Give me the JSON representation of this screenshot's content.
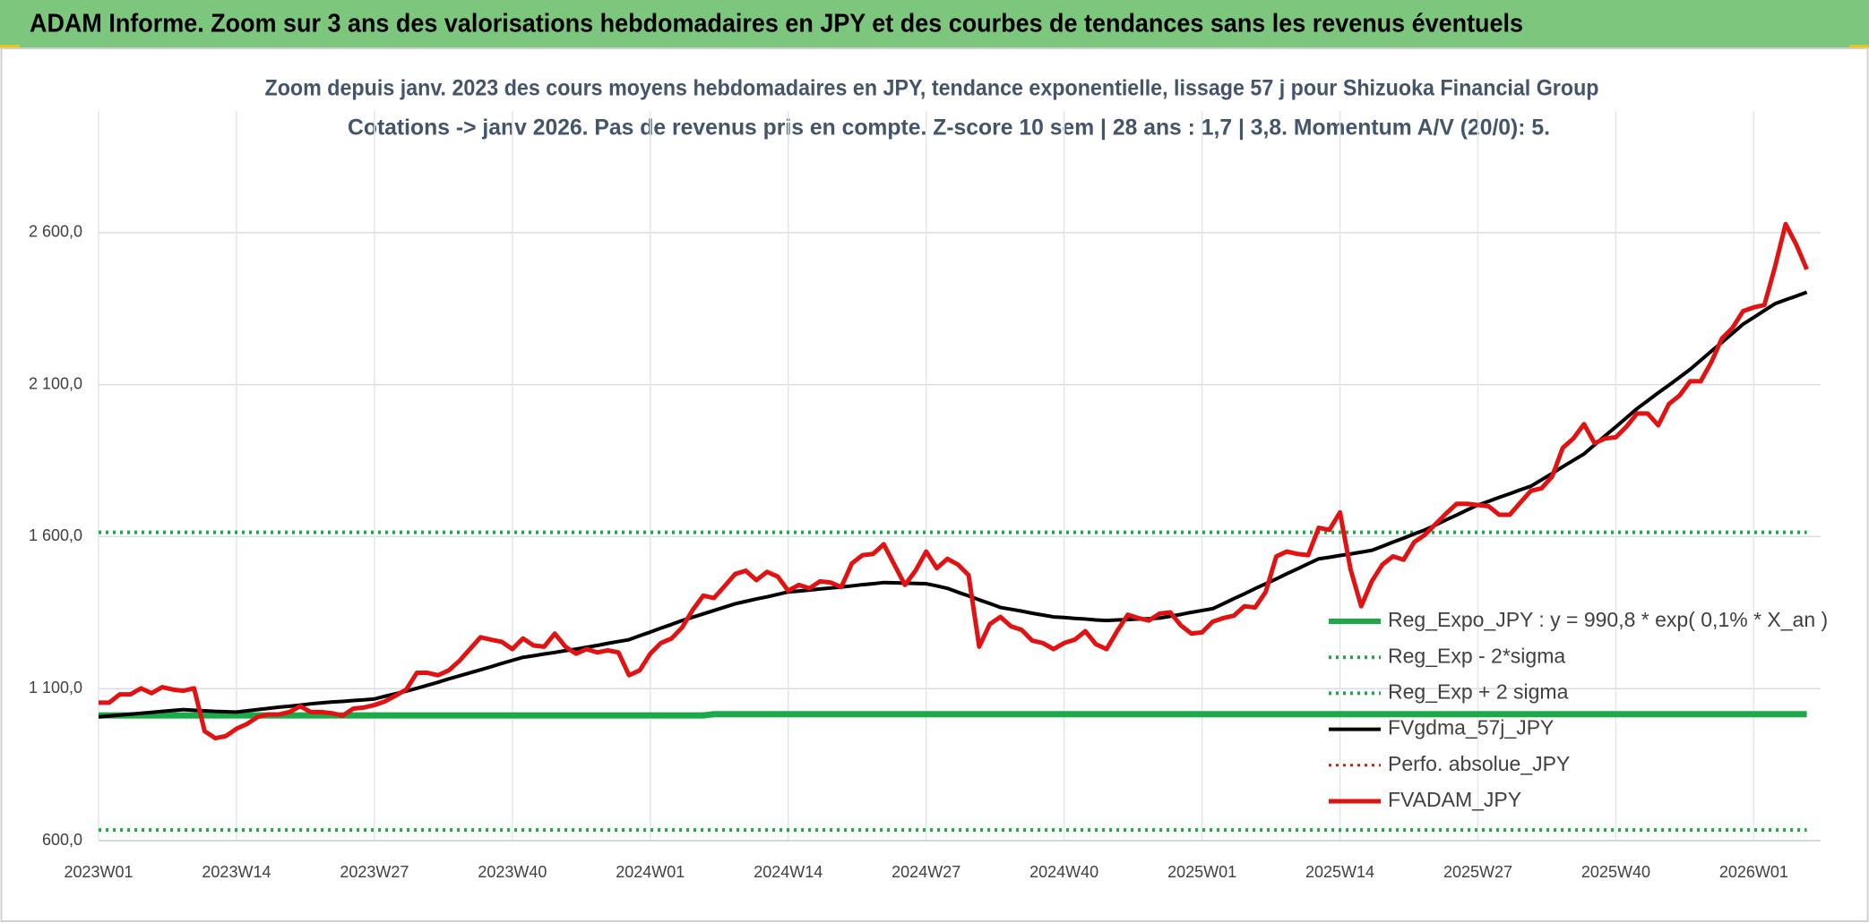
{
  "header": {
    "title": "ADAM Informe. Zoom sur 3 ans des valorisations hebdomadaires en JPY et des courbes de tendances sans les revenus éventuels"
  },
  "chart_data": {
    "type": "line",
    "title": "Zoom depuis janv. 2023 des cours moyens hebdomadaires en JPY, tendance exponentielle, lissage 57 j pour Shizuoka Financial Group",
    "subtitle": "Cotations -> janv 2026. Pas de revenus pris en compte. Z-score 10 sem | 28 ans : 1,7 | 3,8. Momentum A/V (20/0): 5.",
    "categories": [
      "2023W01",
      null,
      null,
      null,
      null,
      null,
      null,
      null,
      null,
      null,
      null,
      null,
      null,
      "2023W14",
      null,
      null,
      null,
      null,
      null,
      null,
      null,
      null,
      null,
      null,
      null,
      null,
      "2023W27",
      null,
      null,
      null,
      null,
      null,
      null,
      null,
      null,
      null,
      null,
      null,
      null,
      "2023W40",
      null,
      null,
      null,
      null,
      null,
      null,
      null,
      null,
      null,
      null,
      null,
      null,
      "2024W01",
      null,
      null,
      null,
      null,
      null,
      null,
      null,
      null,
      null,
      null,
      null,
      null,
      "2024W14",
      null,
      null,
      null,
      null,
      null,
      null,
      null,
      null,
      null,
      null,
      null,
      null,
      "2024W27",
      null,
      null,
      null,
      null,
      null,
      null,
      null,
      null,
      null,
      null,
      null,
      null,
      "2024W40",
      null,
      null,
      null,
      null,
      null,
      null,
      null,
      null,
      null,
      null,
      null,
      null,
      "2025W01",
      null,
      null,
      null,
      null,
      null,
      null,
      null,
      null,
      null,
      null,
      null,
      null,
      "2025W14",
      null,
      null,
      null,
      null,
      null,
      null,
      null,
      null,
      null,
      null,
      null,
      null,
      "2025W27",
      null,
      null,
      null,
      null,
      null,
      null,
      null,
      null,
      null,
      null,
      null,
      null,
      "2025W40",
      null,
      null,
      null,
      null,
      null,
      null,
      null,
      null,
      null,
      null,
      null,
      null,
      "2026W01",
      null,
      null,
      null,
      null,
      null
    ],
    "ylim": [
      600,
      3000
    ],
    "yticks": [
      {
        "value": 600,
        "label": "600,0"
      },
      {
        "value": 1100,
        "label": "1 100,0"
      },
      {
        "value": 1600,
        "label": "1 600,0"
      },
      {
        "value": 2100,
        "label": "2 100,0"
      },
      {
        "value": 2600,
        "label": "2 600,0"
      }
    ],
    "grid": true,
    "legend": "right",
    "series": [
      {
        "name": "Reg_Expo_JPY : y = 990,8 * exp( 0,1% *  X_an )",
        "color": "#1aaa48",
        "dash": "solid",
        "width": 7,
        "values": [
          1012,
          1012,
          1012,
          1012,
          1012,
          1012,
          1012,
          1012,
          1012,
          1012,
          1012,
          1012,
          1012,
          1012,
          1012,
          1012,
          1012,
          1012,
          1012,
          1012,
          1012,
          1012,
          1012,
          1012,
          1012,
          1012,
          1012,
          1012,
          1012,
          1012,
          1012,
          1012,
          1012,
          1012,
          1012,
          1012,
          1012,
          1012,
          1012,
          1012,
          1012,
          1012,
          1012,
          1012,
          1012,
          1012,
          1012,
          1012,
          1012,
          1012,
          1012,
          1012,
          1012,
          1012,
          1012,
          1012,
          1012,
          1012,
          1016,
          1016,
          1016,
          1016,
          1016,
          1016,
          1016,
          1016,
          1016,
          1016,
          1016,
          1016,
          1016,
          1016,
          1016,
          1016,
          1016,
          1016,
          1016,
          1016,
          1016,
          1016,
          1016,
          1016,
          1016,
          1016,
          1016,
          1016,
          1016,
          1016,
          1016,
          1016,
          1016,
          1016,
          1016,
          1016,
          1016,
          1016,
          1016,
          1016,
          1016,
          1016,
          1016,
          1016,
          1016,
          1016,
          1016,
          1016,
          1016,
          1016,
          1016,
          1016,
          1016,
          1016,
          1016,
          1016,
          1016,
          1016,
          1016,
          1016,
          1016,
          1016,
          1016,
          1016,
          1016,
          1016,
          1016,
          1016,
          1016,
          1016,
          1016,
          1016,
          1016,
          1016,
          1016,
          1016,
          1016,
          1016,
          1016,
          1016,
          1016,
          1016,
          1016,
          1016,
          1016,
          1016,
          1016,
          1016,
          1016,
          1016,
          1016,
          1016,
          1016,
          1016,
          1016,
          1016,
          1016,
          1016,
          1016,
          1016,
          1016,
          1016,
          1016,
          1016
        ]
      },
      {
        "name": "Reg_Exp - 2*sigma",
        "color": "#1aaa48",
        "dash": "dotted",
        "width": 4,
        "values": [
          635,
          635,
          635,
          635,
          635,
          635,
          635,
          635,
          635,
          635,
          635,
          635,
          635,
          635,
          635,
          635,
          635,
          635,
          635,
          635,
          635,
          635,
          635,
          635,
          635,
          635,
          635,
          635,
          635,
          635,
          635,
          635,
          635,
          635,
          635,
          635,
          635,
          635,
          635,
          635,
          635,
          635,
          635,
          635,
          635,
          635,
          635,
          635,
          635,
          635,
          635,
          635,
          635,
          635,
          635,
          635,
          635,
          635,
          635,
          635,
          635,
          635,
          635,
          635,
          635,
          635,
          635,
          635,
          635,
          635,
          635,
          635,
          635,
          635,
          635,
          635,
          635,
          635,
          635,
          635,
          635,
          635,
          635,
          635,
          635,
          635,
          635,
          635,
          635,
          635,
          635,
          635,
          635,
          635,
          635,
          635,
          635,
          635,
          635,
          635,
          635,
          635,
          635,
          635,
          635,
          635,
          635,
          635,
          635,
          635,
          635,
          635,
          635,
          635,
          635,
          635,
          635,
          635,
          635,
          635,
          635,
          635,
          635,
          635,
          635,
          635,
          635,
          635,
          635,
          635,
          635,
          635,
          635,
          635,
          635,
          635,
          635,
          635,
          635,
          635,
          635,
          635,
          635,
          635,
          635,
          635,
          635,
          635,
          635,
          635,
          635,
          635,
          635,
          635,
          635,
          635,
          635,
          635,
          635,
          635,
          635,
          635
        ]
      },
      {
        "name": "Reg_Exp + 2 sigma",
        "color": "#1aaa48",
        "dash": "dotted",
        "width": 4,
        "values": [
          1614,
          1614,
          1614,
          1614,
          1614,
          1614,
          1614,
          1614,
          1614,
          1614,
          1614,
          1614,
          1614,
          1614,
          1614,
          1614,
          1614,
          1614,
          1614,
          1614,
          1614,
          1614,
          1614,
          1614,
          1614,
          1614,
          1614,
          1614,
          1614,
          1614,
          1614,
          1614,
          1614,
          1614,
          1614,
          1614,
          1614,
          1614,
          1614,
          1614,
          1614,
          1614,
          1614,
          1614,
          1614,
          1614,
          1614,
          1614,
          1614,
          1614,
          1614,
          1614,
          1614,
          1614,
          1614,
          1614,
          1614,
          1614,
          1614,
          1614,
          1614,
          1614,
          1614,
          1614,
          1614,
          1614,
          1614,
          1614,
          1614,
          1614,
          1614,
          1614,
          1614,
          1614,
          1614,
          1614,
          1614,
          1614,
          1614,
          1614,
          1614,
          1614,
          1614,
          1614,
          1614,
          1614,
          1614,
          1614,
          1614,
          1614,
          1614,
          1614,
          1614,
          1614,
          1614,
          1614,
          1614,
          1614,
          1614,
          1614,
          1614,
          1614,
          1614,
          1614,
          1614,
          1614,
          1614,
          1614,
          1614,
          1614,
          1614,
          1614,
          1614,
          1614,
          1614,
          1614,
          1614,
          1614,
          1614,
          1614,
          1614,
          1614,
          1614,
          1614,
          1614,
          1614,
          1614,
          1614,
          1614,
          1614,
          1614,
          1614,
          1614,
          1614,
          1614,
          1614,
          1614,
          1614,
          1614,
          1614,
          1614,
          1614,
          1614,
          1614,
          1614,
          1614,
          1614,
          1614,
          1614,
          1614,
          1614,
          1614,
          1614,
          1614,
          1614,
          1614,
          1614,
          1614,
          1614,
          1614,
          1614,
          1614
        ]
      },
      {
        "name": "FVgdma_57j_JPY",
        "color": "#000000",
        "dash": "solid",
        "width": 4,
        "values": [
          1007,
          1010,
          1013,
          1016,
          1019,
          1022,
          1025,
          1028,
          1031,
          1029,
          1027,
          1025,
          1024,
          1023,
          1027,
          1031,
          1035,
          1039,
          1042,
          1046,
          1050,
          1053,
          1056,
          1058,
          1061,
          1063,
          1066,
          1075,
          1083,
          1092,
          1101,
          1111,
          1121,
          1132,
          1142,
          1152,
          1162,
          1172,
          1183,
          1193,
          1203,
          1208,
          1214,
          1219,
          1225,
          1230,
          1236,
          1242,
          1249,
          1255,
          1261,
          1274,
          1286,
          1299,
          1311,
          1324,
          1335,
          1346,
          1357,
          1368,
          1379,
          1387,
          1395,
          1402,
          1410,
          1418,
          1421,
          1424,
          1428,
          1431,
          1434,
          1438,
          1442,
          1445,
          1449,
          1448,
          1447,
          1446,
          1445,
          1438,
          1430,
          1417,
          1405,
          1392,
          1380,
          1367,
          1361,
          1355,
          1348,
          1342,
          1336,
          1334,
          1331,
          1329,
          1326,
          1324,
          1326,
          1327,
          1329,
          1330,
          1332,
          1338,
          1344,
          1351,
          1357,
          1363,
          1379,
          1396,
          1412,
          1429,
          1445,
          1461,
          1478,
          1494,
          1511,
          1527,
          1532,
          1538,
          1543,
          1549,
          1555,
          1568,
          1582,
          1595,
          1609,
          1622,
          1638,
          1655,
          1671,
          1688,
          1704,
          1716,
          1729,
          1741,
          1754,
          1766,
          1787,
          1808,
          1830,
          1851,
          1872,
          1902,
          1932,
          1961,
          1991,
          2021,
          2047,
          2073,
          2098,
          2124,
          2150,
          2180,
          2210,
          2239,
          2269,
          2299,
          2321,
          2344,
          2366,
          2379,
          2391,
          2404
        ]
      },
      {
        "name": "Perfo. absolue_JPY",
        "color": "#e31212",
        "dash": "dotted",
        "width": 3,
        "values": [
          null,
          null,
          null,
          null,
          null,
          null,
          null,
          null,
          null,
          null,
          null,
          null,
          null,
          null,
          null,
          null,
          null,
          null,
          null,
          null,
          null,
          null,
          null,
          null,
          null,
          null,
          null,
          null,
          null,
          null,
          null,
          null,
          null,
          null,
          null,
          null,
          null,
          null,
          null,
          null,
          null,
          null,
          null,
          null,
          null,
          null,
          null,
          null,
          null,
          null,
          null,
          null,
          null,
          null,
          null,
          null,
          null,
          null,
          null,
          null,
          null,
          null,
          null,
          null,
          null,
          null,
          null,
          null,
          null,
          null,
          null,
          null,
          null,
          null,
          null,
          null,
          null,
          null,
          null,
          null,
          null,
          null,
          null,
          null,
          null,
          null,
          null,
          null,
          null,
          null,
          null,
          null,
          null,
          null,
          null,
          null,
          null,
          null,
          null,
          null,
          null,
          null,
          null,
          null,
          null,
          null,
          null,
          null,
          null,
          null,
          null,
          null,
          null,
          null,
          null,
          null,
          null,
          null,
          null,
          null,
          null,
          null,
          null,
          null,
          null,
          null,
          null,
          null,
          null,
          null,
          null,
          null,
          null,
          null,
          null,
          null,
          null,
          null,
          null,
          null,
          null,
          null,
          null,
          null,
          null,
          null,
          null,
          null,
          null,
          null,
          null,
          null,
          null,
          null,
          null,
          null,
          null,
          null,
          null,
          null,
          null,
          null
        ]
      },
      {
        "name": "FVADAM_JPY",
        "color": "#e31212",
        "dash": "solid",
        "width": 5,
        "values": [
          1054,
          1054,
          1081,
          1081,
          1101,
          1085,
          1105,
          1097,
          1093,
          1101,
          960,
          937,
          944,
          968,
          984,
          1007,
          1015,
          1015,
          1023,
          1042,
          1023,
          1023,
          1019,
          1011,
          1034,
          1038,
          1046,
          1058,
          1077,
          1097,
          1152,
          1152,
          1144,
          1160,
          1191,
          1230,
          1269,
          1261,
          1254,
          1230,
          1265,
          1242,
          1238,
          1281,
          1238,
          1215,
          1230,
          1219,
          1226,
          1219,
          1144,
          1160,
          1215,
          1250,
          1265,
          1301,
          1359,
          1406,
          1398,
          1437,
          1477,
          1488,
          1457,
          1484,
          1469,
          1422,
          1441,
          1430,
          1453,
          1449,
          1434,
          1512,
          1539,
          1543,
          1575,
          1508,
          1441,
          1488,
          1551,
          1496,
          1527,
          1508,
          1473,
          1238,
          1312,
          1336,
          1305,
          1293,
          1258,
          1250,
          1230,
          1250,
          1261,
          1289,
          1246,
          1230,
          1289,
          1343,
          1332,
          1324,
          1347,
          1351,
          1308,
          1281,
          1285,
          1320,
          1332,
          1340,
          1371,
          1367,
          1418,
          1535,
          1551,
          1543,
          1539,
          1629,
          1622,
          1680,
          1492,
          1371,
          1453,
          1508,
          1535,
          1524,
          1582,
          1606,
          1641,
          1676,
          1708,
          1708,
          1704,
          1700,
          1672,
          1672,
          1712,
          1751,
          1759,
          1798,
          1892,
          1923,
          1970,
          1907,
          1923,
          1927,
          1962,
          2005,
          2005,
          1966,
          2036,
          2064,
          2111,
          2111,
          2174,
          2252,
          2287,
          2342,
          2354,
          2362,
          2487,
          2628,
          2561,
          2479
        ]
      }
    ]
  }
}
